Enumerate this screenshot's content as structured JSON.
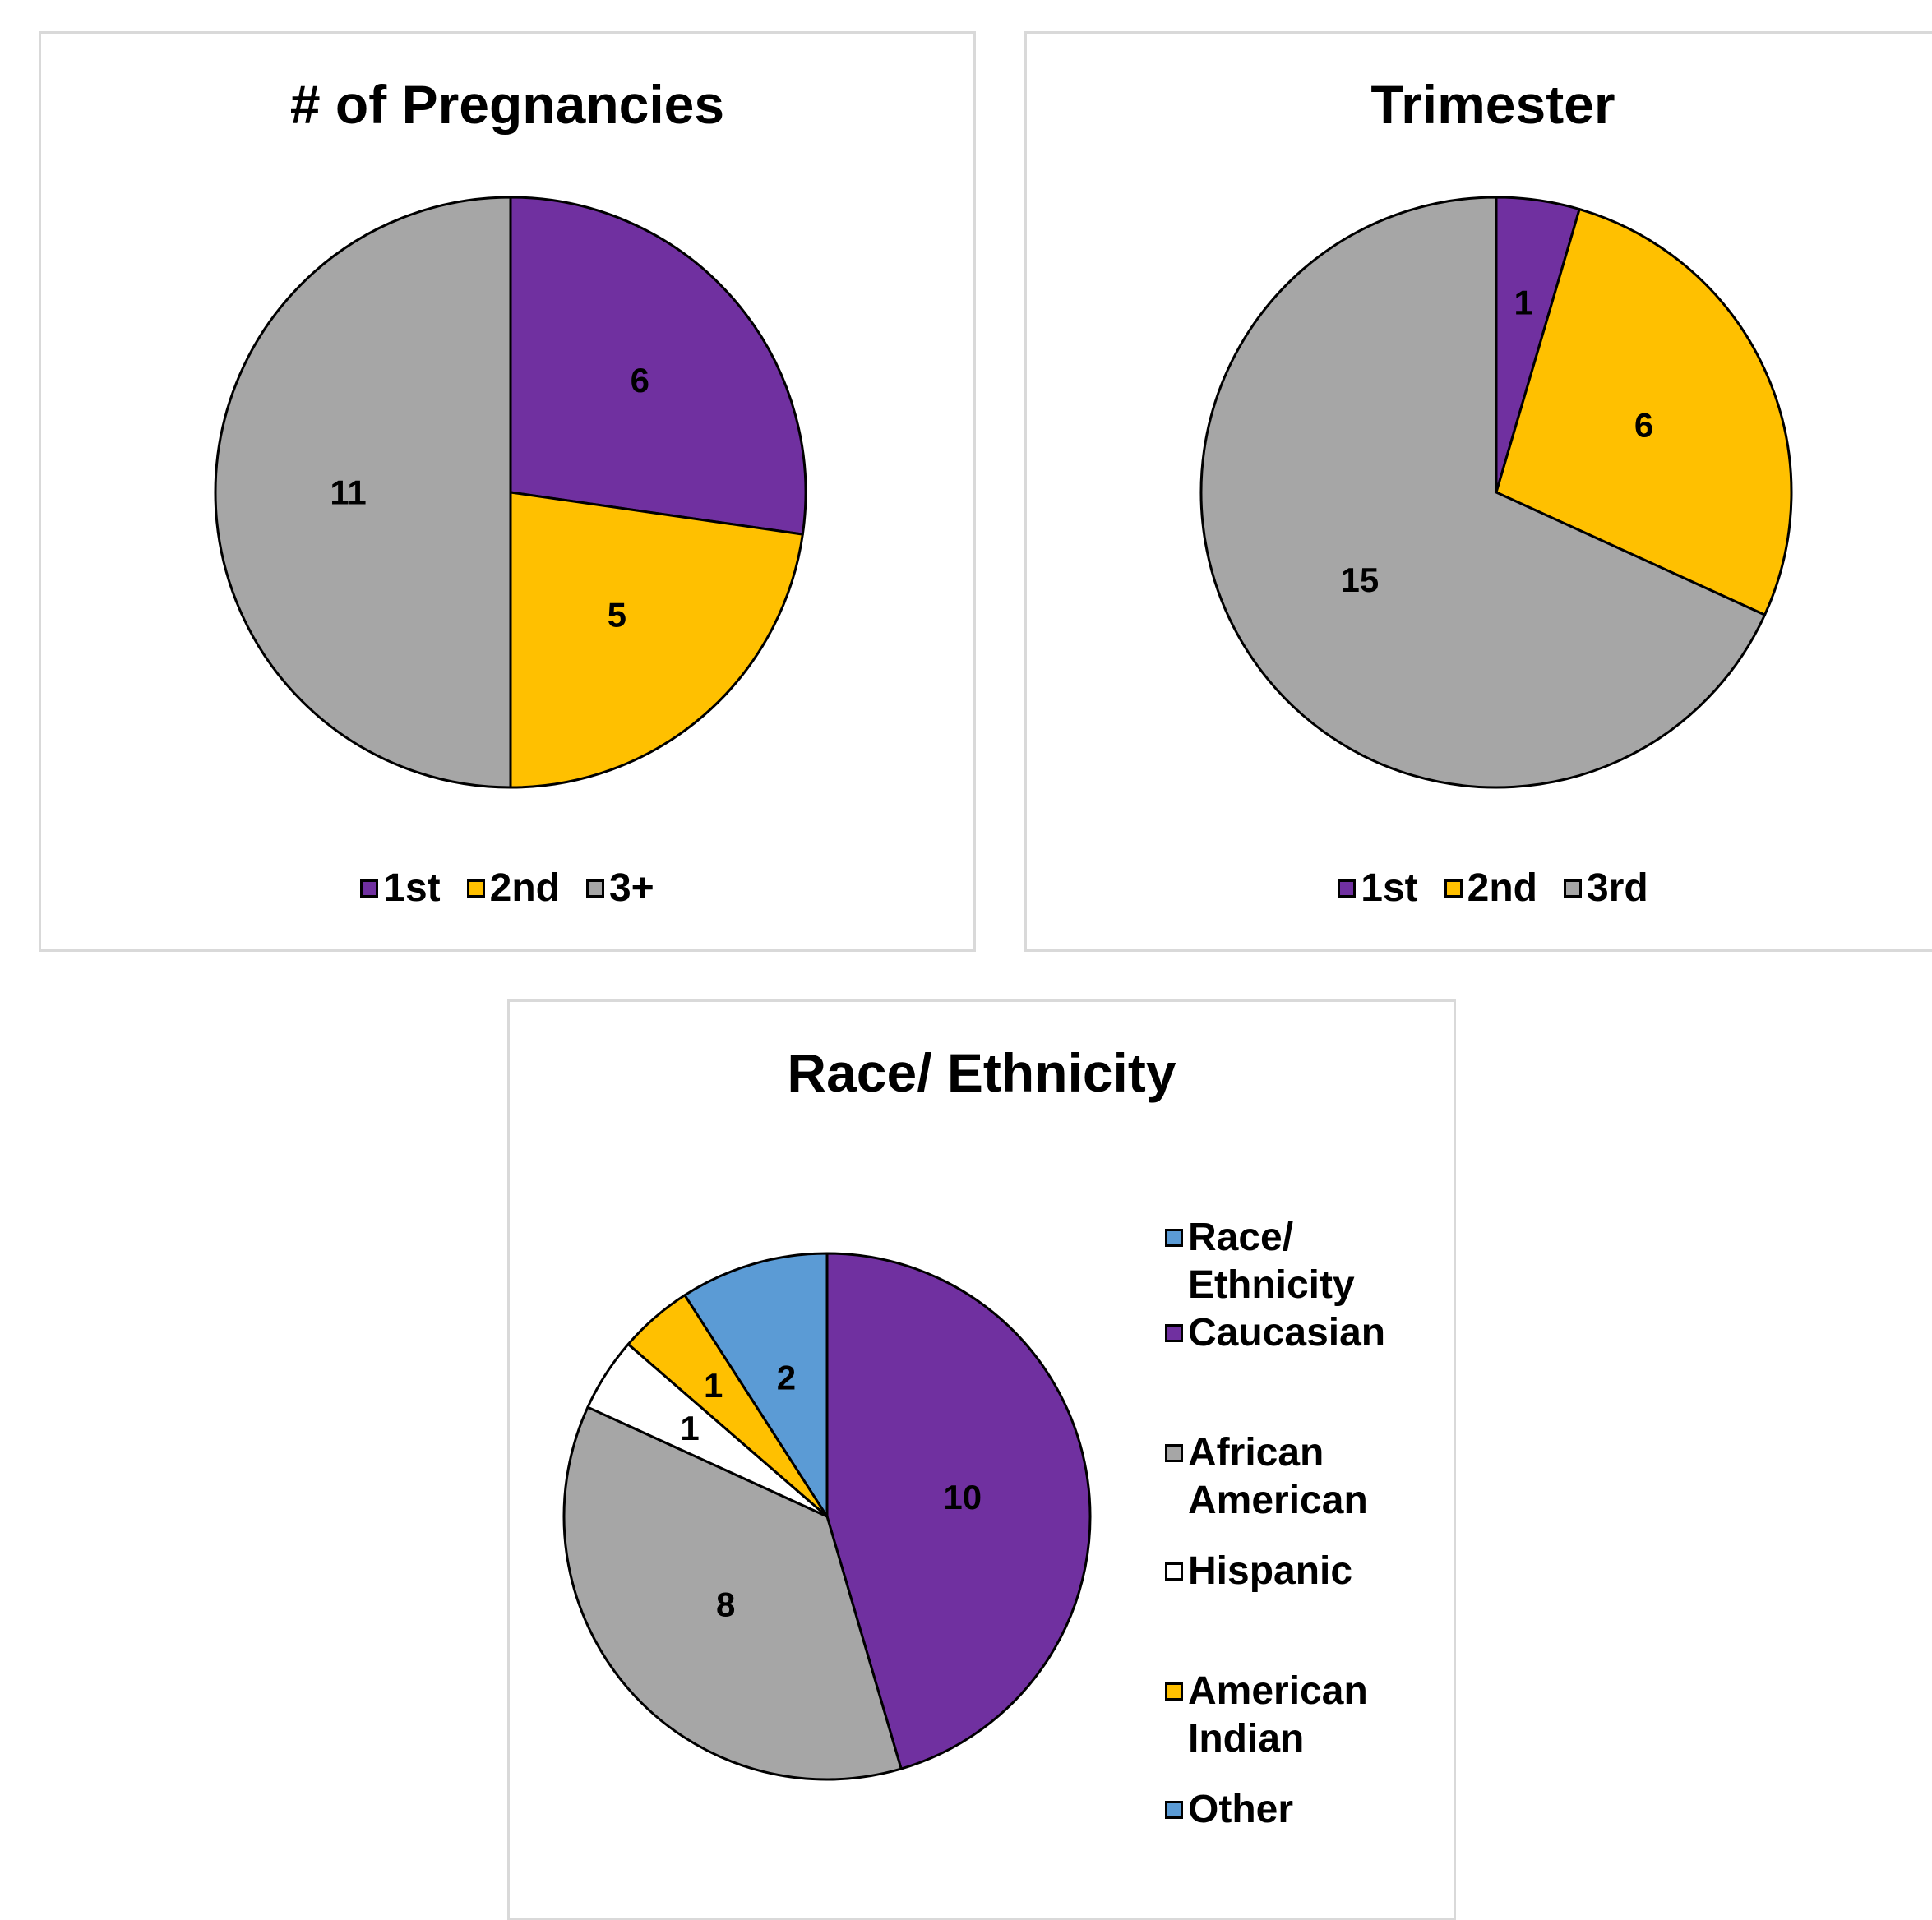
{
  "chart_data": [
    {
      "type": "pie",
      "title": "# of Pregnancies",
      "categories": [
        "1st",
        "2nd",
        "3+"
      ],
      "values": [
        6,
        5,
        11
      ],
      "colors": [
        "#7030a0",
        "#ffc000",
        "#a6a6a6"
      ],
      "legend": "bottom"
    },
    {
      "type": "pie",
      "title": "Trimester",
      "categories": [
        "1st",
        "2nd",
        "3rd"
      ],
      "values": [
        1,
        6,
        15
      ],
      "colors": [
        "#7030a0",
        "#ffc000",
        "#a6a6a6"
      ],
      "legend": "bottom"
    },
    {
      "type": "pie",
      "title": "Race/ Ethnicity",
      "categories": [
        "Caucasian",
        "African American",
        "Hispanic",
        "American Indian",
        "Other"
      ],
      "values": [
        10,
        8,
        1,
        1,
        2
      ],
      "colors": [
        "#7030a0",
        "#a6a6a6",
        "#ffffff",
        "#ffc000",
        "#5b9bd5"
      ],
      "legend": "right",
      "legend_entries": [
        "Race/ Ethnicity",
        "Caucasian",
        "African American",
        "Hispanic",
        "American Indian",
        "Other"
      ],
      "legend_colors": [
        "#5b9bd5",
        "#7030a0",
        "#a6a6a6",
        "#ffffff",
        "#ffc000",
        "#5b9bd5"
      ]
    }
  ]
}
